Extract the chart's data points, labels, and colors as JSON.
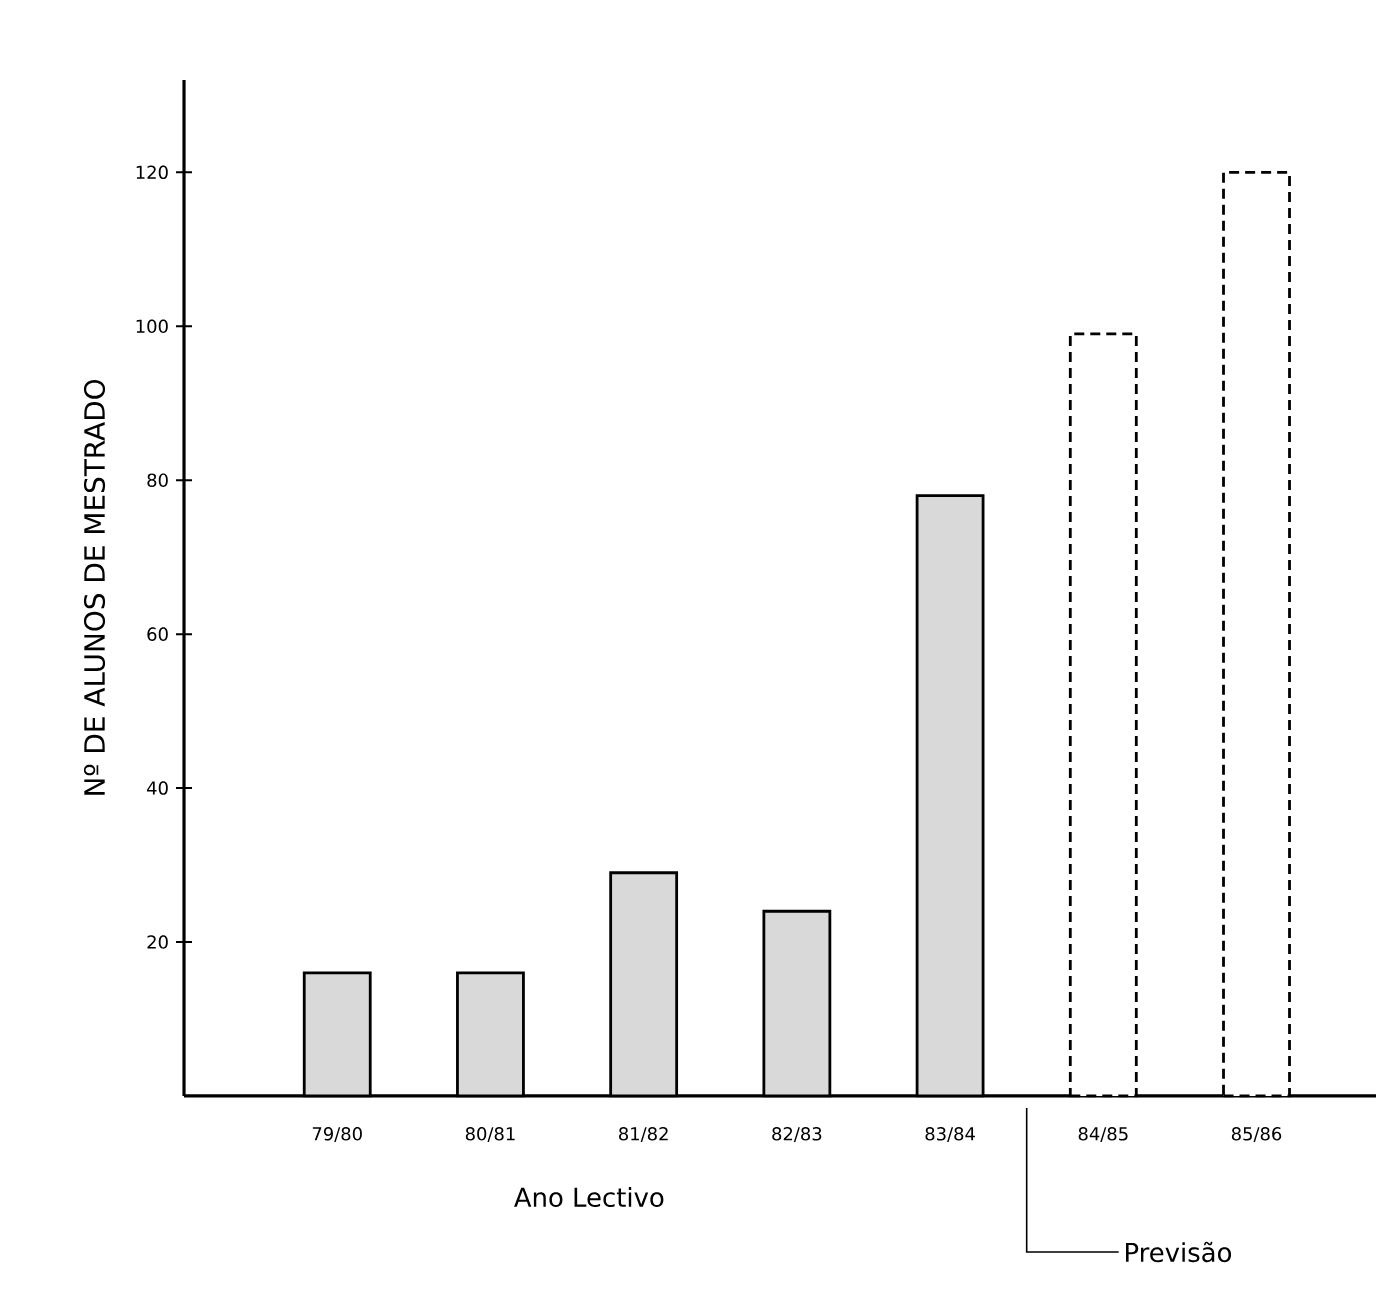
{
  "chart_data": {
    "type": "bar",
    "ylabel": "Nº DE ALUNOS DE MESTRADO",
    "xlabel": "Ano Lectivo",
    "categories": [
      "79/80",
      "80/81",
      "81/82",
      "82/83",
      "83/84",
      "84/85",
      "85/86"
    ],
    "series": [
      {
        "color": "#000000",
        "line_style": "solid",
        "values": [
          16,
          16,
          29,
          24,
          78,
          null,
          null
        ]
      },
      {
        "color": "#000000",
        "line_style": "dashed",
        "values": [
          null,
          null,
          null,
          null,
          null,
          99,
          120
        ]
      }
    ],
    "ylim": [
      0,
      132
    ],
    "yticks": [
      20,
      40,
      60,
      80,
      100,
      120
    ],
    "annotations": [
      "Previsão"
    ],
    "grid": false
  }
}
